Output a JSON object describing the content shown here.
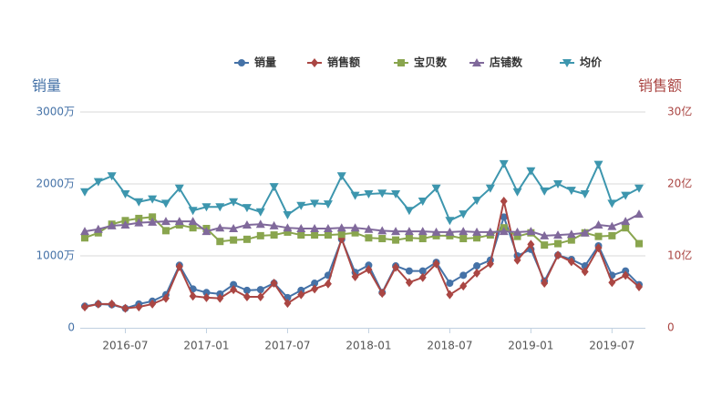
{
  "chart_data": {
    "type": "line",
    "y_title": "销量",
    "y2_title": "销售额",
    "categories": [
      null,
      null,
      null,
      "2016-07",
      null,
      null,
      null,
      null,
      null,
      "2017-01",
      null,
      null,
      null,
      null,
      null,
      "2017-07",
      null,
      null,
      null,
      null,
      null,
      "2018-01",
      null,
      null,
      null,
      null,
      null,
      "2018-07",
      null,
      null,
      null,
      null,
      null,
      "2019-01",
      null,
      null,
      null,
      null,
      null,
      "2019-07",
      null,
      null
    ],
    "ylim": [
      0,
      3000
    ],
    "yticks": [
      0,
      {
        "value": 1000,
        "label": "1000万"
      },
      {
        "value": 2000,
        "label": "2000万"
      },
      {
        "value": 3000,
        "label": "3000万"
      }
    ],
    "y2lim": [
      0,
      30
    ],
    "y2ticks": [
      0,
      {
        "value": 10,
        "label": "10亿"
      },
      {
        "value": 20,
        "label": "20亿"
      },
      {
        "value": 30,
        "label": "30亿"
      }
    ],
    "grid": true,
    "legend": "top",
    "series": [
      {
        "name": "销量",
        "color": "#4572a7",
        "values": [
          300,
          330,
          320,
          270,
          330,
          370,
          460,
          870,
          540,
          490,
          470,
          600,
          520,
          530,
          620,
          420,
          520,
          620,
          730,
          1230,
          770,
          870,
          490,
          860,
          790,
          790,
          910,
          620,
          730,
          860,
          940,
          1540,
          1000,
          1090,
          650,
          1010,
          950,
          860,
          1140,
          730,
          790,
          600
        ]
      },
      {
        "name": "销售额",
        "color": "#aa4643",
        "axis": "y2",
        "values": [
          2.9,
          3.3,
          3.3,
          2.7,
          2.9,
          3.3,
          4.1,
          8.5,
          4.4,
          4.2,
          4.1,
          5.3,
          4.3,
          4.3,
          6.2,
          3.4,
          4.6,
          5.4,
          6.1,
          12.4,
          7.1,
          8.1,
          4.8,
          8.4,
          6.3,
          7.0,
          8.9,
          4.6,
          5.8,
          7.6,
          8.9,
          17.6,
          9.4,
          11.6,
          6.2,
          10.1,
          9.2,
          7.8,
          11.1,
          6.3,
          7.3,
          5.7
        ]
      },
      {
        "name": "宝贝数",
        "color": "#89a54e",
        "values": [
          1250,
          1320,
          1440,
          1490,
          1520,
          1540,
          1350,
          1430,
          1390,
          1380,
          1200,
          1220,
          1230,
          1280,
          1290,
          1330,
          1290,
          1290,
          1290,
          1300,
          1320,
          1250,
          1240,
          1220,
          1250,
          1240,
          1280,
          1280,
          1240,
          1250,
          1290,
          1390,
          1270,
          1320,
          1150,
          1170,
          1220,
          1320,
          1270,
          1280,
          1390,
          1170
        ]
      },
      {
        "name": "店铺数",
        "color": "#80699b",
        "values": [
          1340,
          1370,
          1420,
          1430,
          1460,
          1470,
          1480,
          1480,
          1480,
          1340,
          1390,
          1380,
          1430,
          1440,
          1420,
          1390,
          1380,
          1380,
          1380,
          1390,
          1390,
          1370,
          1350,
          1340,
          1340,
          1340,
          1330,
          1330,
          1340,
          1330,
          1330,
          1340,
          1330,
          1340,
          1280,
          1290,
          1300,
          1320,
          1430,
          1410,
          1480,
          1580
        ]
      },
      {
        "name": "均价",
        "color": "#3d96ae",
        "values": [
          1890,
          2030,
          2110,
          1860,
          1750,
          1790,
          1730,
          1940,
          1630,
          1680,
          1680,
          1750,
          1670,
          1610,
          1960,
          1570,
          1700,
          1730,
          1720,
          2110,
          1840,
          1860,
          1870,
          1860,
          1630,
          1760,
          1940,
          1490,
          1580,
          1770,
          1940,
          2280,
          1890,
          2180,
          1900,
          2000,
          1910,
          1860,
          2270,
          1730,
          1840,
          1940
        ]
      }
    ]
  }
}
